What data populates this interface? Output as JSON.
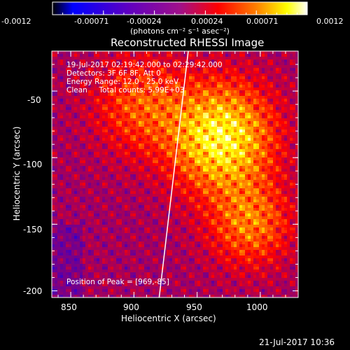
{
  "chart_data": {
    "type": "heatmap",
    "title": "Reconstructed RHESSI Image",
    "xlabel": "Heliocentric X (arcsec)",
    "ylabel": "Heliocentric Y (arcsec)",
    "xlim": [
      835,
      1030
    ],
    "ylim": [
      -205,
      -20
    ],
    "x_ticks": [
      850,
      900,
      950,
      1000
    ],
    "y_ticks": [
      -50,
      -100,
      -150,
      -200
    ],
    "colorbar": {
      "range": [
        -0.0012,
        0.0012
      ],
      "ticks": [
        "-0.0012",
        "-0.00071",
        "-0.00024",
        "0.00024",
        "0.00071",
        "0.0012"
      ],
      "unit_label": "(photons cm⁻² s⁻¹ asec⁻²)",
      "colormap": [
        "#000000",
        "#0000ff",
        "#800080",
        "#ff0000",
        "#ff8000",
        "#ffff00",
        "#ffffff"
      ]
    },
    "annotations": {
      "time_range": "19-Jul-2017 02:19:42.000 to 02:29:42.000",
      "detectors": "Detectors: 3F 6F 8F, Att 0",
      "energy_range": "Energy Range: 12.0 - 25.0 keV",
      "method_counts": "Clean     Total counts: 5.99E+03",
      "peak": "Position of Peak = [969,-85]"
    },
    "limb_line": [
      [
        943,
        -20
      ],
      [
        920,
        -205
      ]
    ],
    "peak_position": [
      969,
      -85
    ]
  },
  "footer": {
    "date": "21-Jul-2017 10:36"
  }
}
